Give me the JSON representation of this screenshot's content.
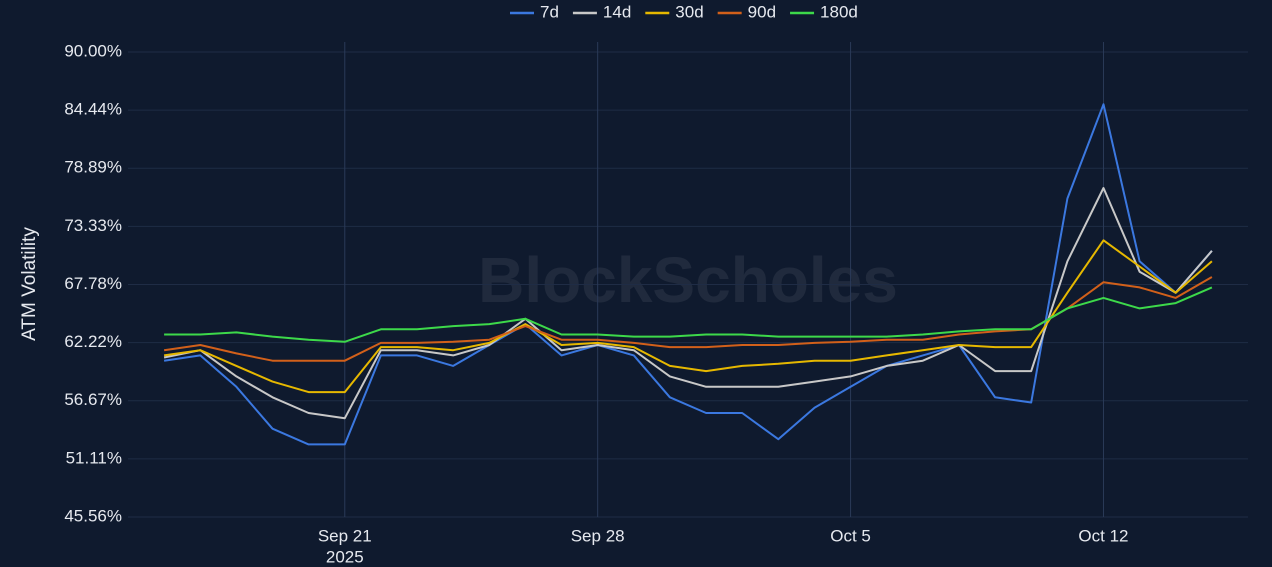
{
  "chart_data": {
    "type": "line",
    "y_label": "ATM Volatility",
    "watermark": "BlockScholes",
    "x": [
      "2025-09-16",
      "2025-09-17",
      "2025-09-18",
      "2025-09-19",
      "2025-09-20",
      "2025-09-21",
      "2025-09-22",
      "2025-09-23",
      "2025-09-24",
      "2025-09-25",
      "2025-09-26",
      "2025-09-27",
      "2025-09-28",
      "2025-09-29",
      "2025-09-30",
      "2025-10-01",
      "2025-10-02",
      "2025-10-03",
      "2025-10-04",
      "2025-10-05",
      "2025-10-06",
      "2025-10-07",
      "2025-10-08",
      "2025-10-09",
      "2025-10-10",
      "2025-10-11",
      "2025-10-12",
      "2025-10-13",
      "2025-10-14",
      "2025-10-15"
    ],
    "series": [
      {
        "name": "7d",
        "color": "#3b78e0",
        "values": [
          60.5,
          61,
          58,
          54,
          52.5,
          52.5,
          61,
          61,
          60,
          62,
          64,
          61,
          62,
          61,
          57,
          55.5,
          55.5,
          53,
          56,
          58,
          60,
          61,
          62,
          57,
          56.5,
          76,
          85,
          70,
          67,
          71
        ]
      },
      {
        "name": "14d",
        "color": "#c8c8c8",
        "values": [
          60.8,
          61.5,
          59,
          57,
          55.5,
          55,
          61.5,
          61.5,
          61,
          62,
          64.5,
          61.5,
          62,
          61.5,
          59,
          58,
          58,
          58,
          58.5,
          59,
          60,
          60.5,
          62,
          59.5,
          59.5,
          70,
          77,
          69,
          67,
          71
        ]
      },
      {
        "name": "30d",
        "color": "#e6b800",
        "values": [
          61,
          61.5,
          60,
          58.5,
          57.5,
          57.5,
          61.8,
          61.8,
          61.5,
          62.2,
          64,
          62,
          62.2,
          61.8,
          60,
          59.5,
          60,
          60.2,
          60.5,
          60.5,
          61,
          61.5,
          62,
          61.8,
          61.8,
          67,
          72,
          69.5,
          67,
          70
        ]
      },
      {
        "name": "90d",
        "color": "#d2601a",
        "values": [
          61.5,
          62,
          61.2,
          60.5,
          60.5,
          60.5,
          62.2,
          62.2,
          62.3,
          62.5,
          63.8,
          62.5,
          62.5,
          62.2,
          61.8,
          61.8,
          62,
          62,
          62.2,
          62.3,
          62.5,
          62.5,
          63,
          63.3,
          63.5,
          65.5,
          68,
          67.5,
          66.5,
          68.5
        ]
      },
      {
        "name": "180d",
        "color": "#3dd94a",
        "values": [
          63,
          63,
          63.2,
          62.8,
          62.5,
          62.3,
          63.5,
          63.5,
          63.8,
          64,
          64.5,
          63,
          63,
          62.8,
          62.8,
          63,
          63,
          62.8,
          62.8,
          62.8,
          62.8,
          63,
          63.3,
          63.5,
          63.5,
          65.5,
          66.5,
          65.5,
          66,
          67.5
        ]
      }
    ],
    "xlim": [
      "2025-09-15",
      "2025-10-16"
    ],
    "xticks": [
      {
        "value": "2025-09-21",
        "label": "Sep 21"
      },
      {
        "value": "2025-09-28",
        "label": "Sep 28"
      },
      {
        "value": "2025-10-05",
        "label": "Oct 5"
      },
      {
        "value": "2025-10-12",
        "label": "Oct 12"
      }
    ],
    "xtick_sublabel": "2025",
    "ylim": [
      45.56,
      90
    ],
    "yticks": [
      {
        "value": 45.56,
        "label": "45.56%"
      },
      {
        "value": 51.11,
        "label": "51.11%"
      },
      {
        "value": 56.67,
        "label": "56.67%"
      },
      {
        "value": 62.22,
        "label": "62.22%"
      },
      {
        "value": 67.78,
        "label": "67.78%"
      },
      {
        "value": 73.33,
        "label": "73.33%"
      },
      {
        "value": 78.89,
        "label": "78.89%"
      },
      {
        "value": 84.44,
        "label": "84.44%"
      },
      {
        "value": 90,
        "label": "90.00%"
      }
    ],
    "grid": true
  }
}
